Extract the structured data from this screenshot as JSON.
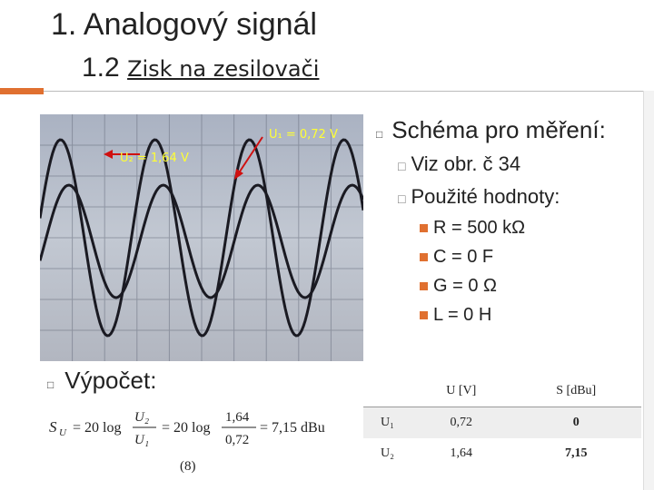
{
  "title": {
    "line1": "1. Analogový signál",
    "line2_num": "1.2",
    "line2_text": "Zisk na zesilovači"
  },
  "scope": {
    "u1_label": "U₁ = 0,72 V",
    "u2_label": "U₂ = 1,64 V",
    "accent": "#ffff33",
    "arrow_color": "#d01010"
  },
  "right": {
    "heading": "Schéma pro měření:",
    "items": [
      "Viz obr. č 34",
      "Použité hodnoty:"
    ],
    "values": [
      "R = 500 kΩ",
      "C = 0 F",
      "G = 0 Ω",
      "L = 0 H"
    ]
  },
  "calc": {
    "label": "Výpočet:",
    "eq_num": "(8)",
    "formula": {
      "lhs": "S",
      "lhs_sub": "U",
      "eq": "= 20 log",
      "frac1_num": "U₂",
      "frac1_den": "U₁",
      "eq2": "= 20 log",
      "frac2_num": "1,64",
      "frac2_den": "0,72",
      "result": "= 7,15 dBu"
    }
  },
  "table": {
    "headers": [
      "",
      "U [V]",
      "S [dBu]"
    ],
    "rows": [
      {
        "name": "U₁",
        "u": "0,72",
        "s": "0"
      },
      {
        "name": "U₂",
        "u": "1,64",
        "s": "7,15"
      }
    ]
  },
  "colors": {
    "accent": "#e07030",
    "scope_bg": "#b8bfcc"
  }
}
